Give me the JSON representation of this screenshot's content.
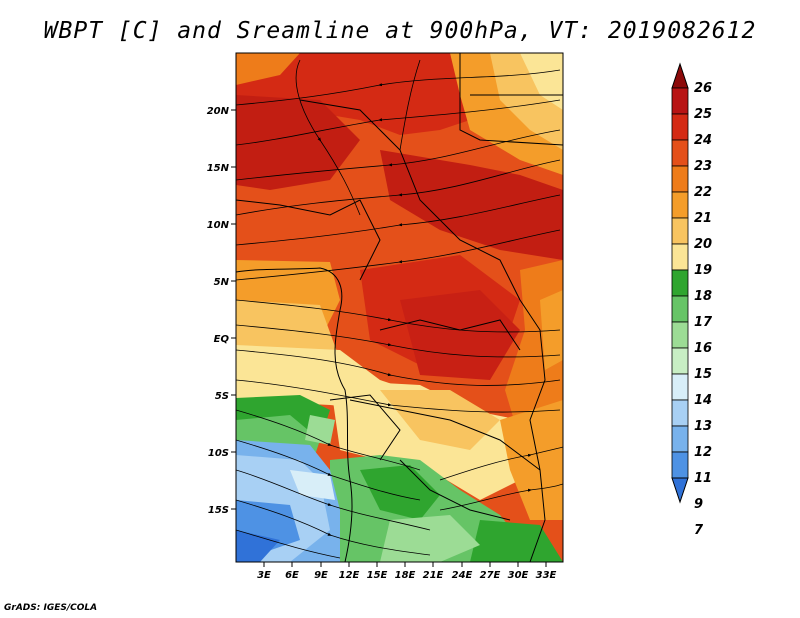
{
  "title": "WBPT [C] and Sreamline at 900hPa, VT: 2019082612",
  "credit": "GrADS: IGES/COLA",
  "map": {
    "variable": "WBPT [C]",
    "level": "900hPa",
    "valid_time": "2019082612",
    "lat_labels": [
      "20N",
      "15N",
      "10N",
      "5N",
      "EQ",
      "5S",
      "10S",
      "15S"
    ],
    "lon_labels": [
      "3E",
      "6E",
      "9E",
      "12E",
      "15E",
      "18E",
      "21E",
      "24E",
      "27E",
      "30E",
      "33E"
    ],
    "background_color": "#d93a10"
  },
  "colorbar": {
    "levels": [
      "26",
      "25",
      "24",
      "23",
      "22",
      "21",
      "20",
      "19",
      "18",
      "17",
      "16",
      "15",
      "14",
      "13",
      "12",
      "11",
      "9",
      "7"
    ],
    "colors": [
      "#8c0a0a",
      "#b81414",
      "#d42a14",
      "#e4501a",
      "#ee7c1a",
      "#f49d2a",
      "#f8c460",
      "#fbe596",
      "#2fa52f",
      "#66c466",
      "#9cdc95",
      "#c8eec4",
      "#d8eef8",
      "#a8d0f4",
      "#78b2ec",
      "#4e92e4",
      "#3072d8"
    ]
  }
}
